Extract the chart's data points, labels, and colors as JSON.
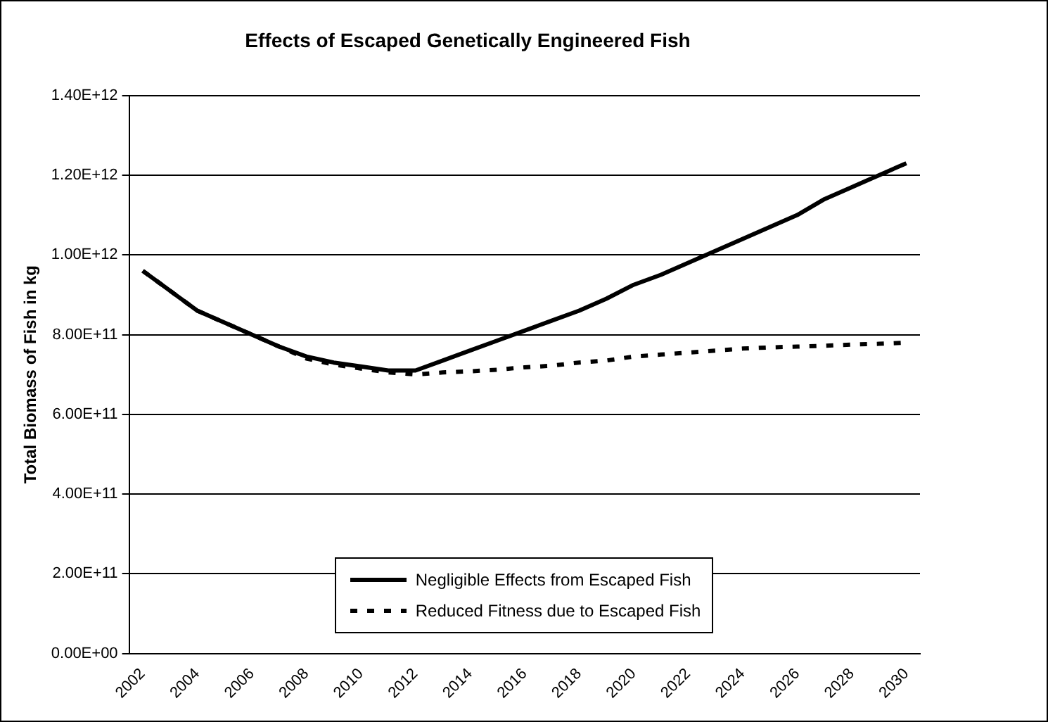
{
  "chart_data": {
    "type": "line",
    "title": "Effects of Escaped Genetically Engineered Fish",
    "ylabel": "Total Biomass of Fish in kg",
    "categories": [
      "2002",
      null,
      "2004",
      null,
      "2006",
      null,
      "2008",
      null,
      "2010",
      null,
      "2012",
      null,
      "2014",
      null,
      "2016",
      null,
      "2018",
      null,
      "2020",
      null,
      "2022",
      null,
      "2024",
      null,
      "2026",
      null,
      "2028",
      null,
      "2030"
    ],
    "series": [
      {
        "name": "Negligible Effects from Escaped Fish",
        "color": "#000000",
        "line_style": "solid",
        "values": [
          960000000000.0,
          910000000000.0,
          860000000000.0,
          830000000000.0,
          800000000000.0,
          770000000000.0,
          745000000000.0,
          730000000000.0,
          720000000000.0,
          710000000000.0,
          710000000000.0,
          735000000000.0,
          760000000000.0,
          785000000000.0,
          810000000000.0,
          835000000000.0,
          860000000000.0,
          890000000000.0,
          925000000000.0,
          950000000000.0,
          980000000000.0,
          1010000000000.0,
          1040000000000.0,
          1070000000000.0,
          1100000000000.0,
          1140000000000.0,
          1170000000000.0,
          1200000000000.0,
          1230000000000.0
        ]
      },
      {
        "name": "Reduced Fitness due to Escaped Fish",
        "color": "#000000",
        "line_style": "dashed",
        "values": [
          960000000000.0,
          910000000000.0,
          860000000000.0,
          830000000000.0,
          800000000000.0,
          770000000000.0,
          740000000000.0,
          725000000000.0,
          715000000000.0,
          705000000000.0,
          700000000000.0,
          705000000000.0,
          708000000000.0,
          712000000000.0,
          718000000000.0,
          722000000000.0,
          730000000000.0,
          735000000000.0,
          745000000000.0,
          750000000000.0,
          755000000000.0,
          760000000000.0,
          765000000000.0,
          768000000000.0,
          770000000000.0,
          772000000000.0,
          775000000000.0,
          777000000000.0,
          780000000000.0
        ]
      }
    ],
    "ylim": [
      0,
      1400000000000.0
    ],
    "yticks": [
      {
        "value": 0,
        "label": "0.00E+00"
      },
      {
        "value": 200000000000.0,
        "label": "2.00E+11"
      },
      {
        "value": 400000000000.0,
        "label": "4.00E+11"
      },
      {
        "value": 600000000000.0,
        "label": "6.00E+11"
      },
      {
        "value": 800000000000.0,
        "label": "8.00E+11"
      },
      {
        "value": 1000000000000.0,
        "label": "1.00E+12"
      },
      {
        "value": 1200000000000.0,
        "label": "1.20E+12"
      },
      {
        "value": 1400000000000.0,
        "label": "1.40E+12"
      }
    ],
    "grid": "y",
    "legend": "bottom",
    "marker": "none"
  }
}
